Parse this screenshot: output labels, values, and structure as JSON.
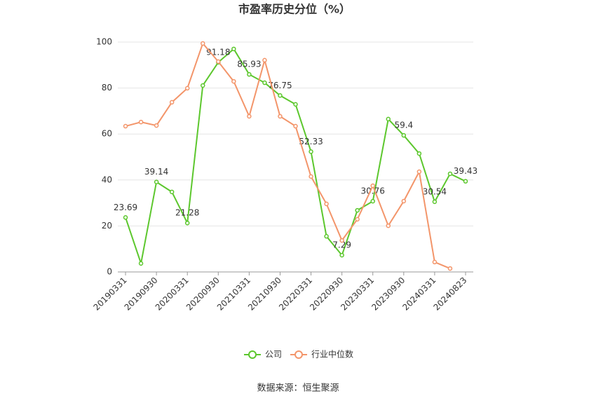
{
  "chart_data": {
    "type": "line",
    "title": "市盈率历史分位（%）",
    "source": "数据来源：恒生聚源",
    "categories": [
      "20190331",
      null,
      "20190930",
      null,
      "20200331",
      null,
      "20200930",
      null,
      "20210331",
      null,
      "20210930",
      null,
      "20220331",
      null,
      "20220930",
      null,
      "20230331",
      null,
      "20230930",
      null,
      "20240331",
      null,
      "20240823"
    ],
    "series": [
      {
        "name": "公司",
        "color": "#5cc72d",
        "values": [
          23.69,
          3.7,
          39.14,
          34.8,
          21.28,
          81.1,
          91.18,
          97.0,
          85.93,
          82.3,
          76.75,
          72.9,
          52.33,
          15.5,
          7.29,
          26.8,
          30.76,
          66.5,
          59.4,
          51.5,
          30.54,
          42.7,
          39.43
        ]
      },
      {
        "name": "行业中位数",
        "color": "#f3956a",
        "values": [
          63.4,
          65.2,
          63.7,
          73.8,
          79.9,
          99.4,
          91.5,
          82.9,
          67.7,
          92.1,
          67.7,
          63.4,
          41.5,
          29.6,
          13.7,
          22.9,
          37.5,
          20.1,
          30.8,
          43.6,
          4.3,
          1.5,
          null
        ]
      }
    ],
    "ylim": [
      0,
      100
    ],
    "yticks": [
      0,
      20,
      40,
      60,
      80,
      100
    ],
    "grid": true
  }
}
